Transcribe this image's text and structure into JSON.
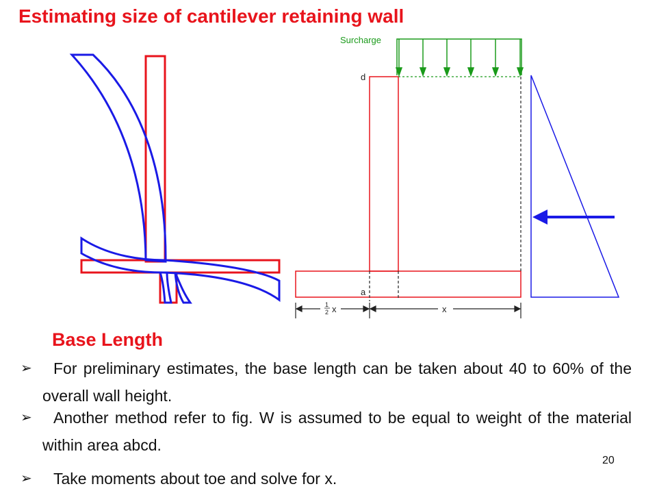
{
  "title": "Estimating size of cantilever retaining wall",
  "figure": {
    "surcharge_label": "Surcharge",
    "point_d": "d",
    "point_a": "a",
    "dim_half_x_num": "1",
    "dim_half_x_den": "2",
    "dim_half_x_var": "x",
    "dim_x": "x"
  },
  "section_heading": "Base Length",
  "bullets": [
    "For preliminary estimates, the base length can be taken about 40 to 60% of the overall wall height.",
    "Another method refer to fig. W is assumed to be equal to weight of the material within area abcd.",
    "Take moments about toe and solve for x."
  ],
  "bullet_marker": "➢",
  "page_number": "20",
  "colors": {
    "title": "#e8141c",
    "wall_outline": "#e8141c",
    "deflected_shape": "#1a1ae6",
    "surcharge": "#1a9a1a",
    "dimension": "#222222"
  }
}
